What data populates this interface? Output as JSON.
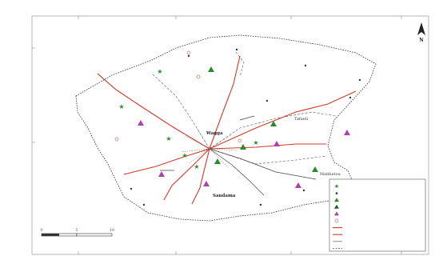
{
  "map": {
    "north_label": "N",
    "lat_labels": [
      "",
      ""
    ],
    "lon_labels_top": [
      "",
      "",
      "",
      ""
    ],
    "lon_labels_bottom": [
      "",
      "",
      "",
      ""
    ],
    "regions": [
      "",
      "",
      ""
    ],
    "places": {
      "wagga": "Wagga",
      "sandama": "Sandama",
      "tafaeli": "Tafaeli",
      "malibatou": "Malibatou"
    },
    "minor_places": [
      "",
      "",
      "",
      "",
      "",
      "",
      "",
      "",
      "",
      "",
      ""
    ],
    "scale": {
      "ticks": [
        "0",
        "5",
        "10"
      ],
      "unit": ""
    },
    "source_lines": [
      "",
      ""
    ],
    "credit_lines": [
      "",
      ""
    ]
  },
  "legend": {
    "items": [
      {
        "label": "",
        "symbol": "star",
        "color": "#2a8a2a"
      },
      {
        "label": "",
        "symbol": "dot",
        "color": "#333333"
      },
      {
        "label": "",
        "symbol": "triangle",
        "color": "#2a8a2a"
      },
      {
        "label": "",
        "symbol": "triangle",
        "color": "#1b5e20"
      },
      {
        "label": "",
        "symbol": "triangle",
        "color": "#b040b0"
      },
      {
        "label": "",
        "symbol": "circle",
        "color": "#c77070"
      },
      {
        "label": "",
        "symbol": "line-red",
        "color": "#d03a2a"
      },
      {
        "label": "",
        "symbol": "line-red",
        "color": "#d03a2a"
      },
      {
        "label": "",
        "symbol": "line-dark",
        "color": "#555555"
      },
      {
        "label": "",
        "symbol": "line-dash",
        "color": "#555555"
      }
    ]
  },
  "colors": {
    "road": "#d03a2a",
    "boundary": "#333333",
    "star": "#2a8a2a",
    "triangle_purple": "#b040b0",
    "triangle_green": "#2a8a2a",
    "circle": "#c77070",
    "text": "#333333"
  }
}
